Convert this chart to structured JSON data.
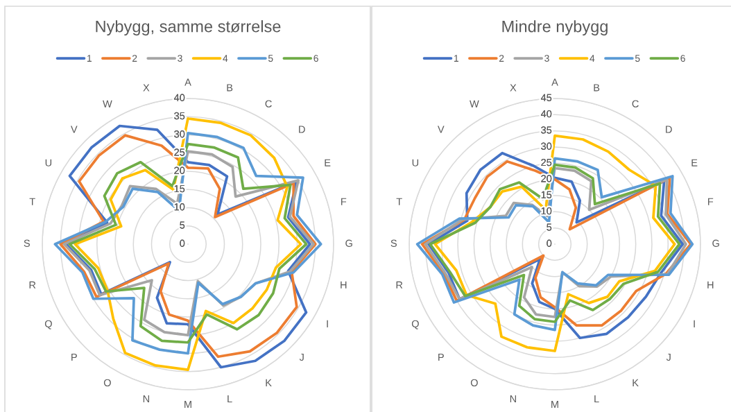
{
  "chart_data": [
    {
      "type": "radar",
      "title": "Nybygg, samme størrelse",
      "categories": [
        "A",
        "B",
        "C",
        "D",
        "E",
        "F",
        "G",
        "H",
        "I",
        "J",
        "K",
        "L",
        "M",
        "N",
        "O",
        "P",
        "Q",
        "R",
        "S",
        "T",
        "U",
        "V",
        "W",
        "X"
      ],
      "ylim": [
        0,
        40
      ],
      "yticks": [
        0,
        5,
        10,
        15,
        20,
        25,
        30,
        35,
        40
      ],
      "grid": "y",
      "legend": "top",
      "series": [
        {
          "name": "1",
          "color": "#4472c4",
          "values": [
            22.5,
            22.5,
            21.5,
            11.5,
            34.5,
            28.5,
            33.5,
            28.5,
            37.5,
            37.5,
            37,
            35,
            22,
            22.5,
            17,
            7,
            27.5,
            27.5,
            33.5,
            23,
            37.5,
            37.5,
            37.5,
            32.5
          ]
        },
        {
          "name": "2",
          "color": "#ed7d31",
          "values": [
            21,
            21.5,
            17.5,
            10.5,
            33.5,
            30,
            35,
            29.5,
            34.5,
            34.5,
            34,
            32,
            21,
            20,
            15,
            7.5,
            29,
            29.5,
            35,
            24,
            34.5,
            34.5,
            34.5,
            28
          ]
        },
        {
          "name": "3",
          "color": "#a5a5a5",
          "values": [
            25.5,
            25.5,
            24.5,
            18.5,
            35,
            29,
            34.5,
            29,
            21.5,
            20.5,
            19.5,
            10.5,
            25,
            25,
            24,
            14,
            28,
            28,
            34,
            22,
            21,
            22.5,
            17.5,
            11.5
          ]
        },
        {
          "name": "4",
          "color": "#ffc000",
          "values": [
            34.5,
            34.5,
            34.5,
            33.5,
            31.5,
            25.5,
            31,
            25,
            25,
            25,
            25,
            19,
            34.5,
            34.5,
            34.5,
            29,
            25.5,
            25.5,
            31,
            19,
            24.5,
            25.5,
            23.5,
            15.5
          ]
        },
        {
          "name": "5",
          "color": "#5b9bd5",
          "values": [
            30.5,
            30.5,
            30.5,
            26.5,
            36.5,
            31,
            36.5,
            30,
            21.5,
            20.5,
            19,
            11,
            30,
            30,
            30.5,
            21,
            30,
            30,
            36.5,
            23.5,
            20.5,
            21.5,
            16.5,
            9.5
          ]
        },
        {
          "name": "6",
          "color": "#70ad47",
          "values": [
            27.5,
            27.5,
            27.5,
            21.5,
            32.5,
            27.5,
            32.5,
            26,
            27,
            27.5,
            27,
            20,
            27,
            27.5,
            26,
            17,
            26,
            26.5,
            32.5,
            20.5,
            26.5,
            27.5,
            26,
            16.5
          ]
        }
      ]
    },
    {
      "type": "radar",
      "title": "Mindre nybygg",
      "categories": [
        "A",
        "B",
        "C",
        "D",
        "E",
        "F",
        "G",
        "H",
        "I",
        "J",
        "K",
        "L",
        "M",
        "N",
        "O",
        "P",
        "Q",
        "R",
        "S",
        "T",
        "U",
        "V",
        "W",
        "X"
      ],
      "ylim": [
        0,
        45
      ],
      "yticks": [
        0,
        5,
        10,
        15,
        20,
        25,
        30,
        35,
        40,
        45
      ],
      "grid": "y",
      "legend": "top",
      "series": [
        {
          "name": "1",
          "color": "#4472c4",
          "values": [
            20.5,
            20,
            15.5,
            9.5,
            39,
            34,
            39.5,
            34,
            32.5,
            32,
            32,
            30,
            20,
            18.5,
            14,
            6.5,
            34,
            34,
            39,
            28,
            31.5,
            32.5,
            32.5,
            25
          ]
        },
        {
          "name": "2",
          "color": "#ed7d31",
          "values": [
            20,
            17.5,
            13,
            6.5,
            41,
            36,
            42,
            35.5,
            29,
            29,
            29,
            26,
            19.5,
            17,
            12,
            5,
            35,
            35.5,
            41,
            29,
            28.5,
            29.5,
            29.5,
            23.5
          ]
        },
        {
          "name": "3",
          "color": "#a5a5a5",
          "values": [
            23.5,
            23.5,
            22.5,
            15,
            40,
            35.5,
            40.5,
            36,
            20,
            18.5,
            15,
            9,
            22.5,
            22.5,
            19,
            10,
            34,
            35,
            40,
            29.5,
            17.5,
            18,
            14,
            9
          ]
        },
        {
          "name": "4",
          "color": "#ffc000",
          "values": [
            33.5,
            33.5,
            33,
            32.5,
            36,
            31.5,
            37,
            32,
            23,
            23,
            21,
            16,
            33,
            33,
            33,
            26,
            31.5,
            31.5,
            37,
            26.5,
            23,
            23,
            20.5,
            11
          ]
        },
        {
          "name": "5",
          "color": "#5b9bd5",
          "values": [
            26.5,
            26.5,
            26.5,
            20.5,
            42,
            37,
            42.5,
            36.5,
            19,
            18,
            14,
            9,
            26.5,
            26,
            25,
            15.5,
            36,
            36,
            42.5,
            30.5,
            16.5,
            17,
            13.5,
            7
          ]
        },
        {
          "name": "6",
          "color": "#70ad47",
          "values": [
            24.5,
            24.5,
            23.5,
            17.5,
            37.5,
            33,
            38.5,
            33,
            24.5,
            24,
            23.5,
            18,
            24,
            24,
            22,
            13.5,
            32,
            33.5,
            38.5,
            25.5,
            23,
            24,
            22,
            14.5
          ]
        }
      ]
    }
  ]
}
